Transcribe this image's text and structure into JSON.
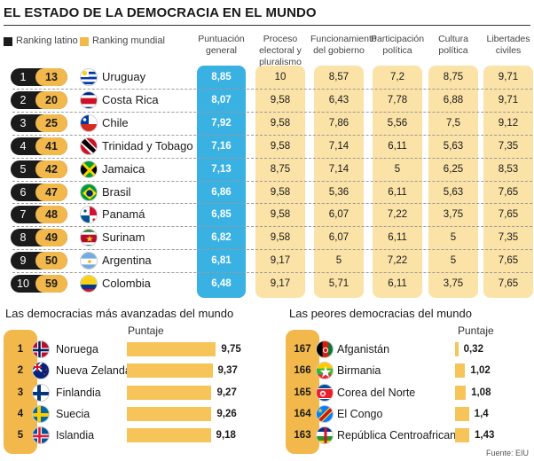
{
  "title": "EL ESTADO DE LA DEMOCRACIA EN EL MUNDO",
  "legend": {
    "latino": "Ranking latino",
    "mundial": "Ranking mundial"
  },
  "colors": {
    "black": "#1b1b1b",
    "gold": "#f2b84b",
    "light": "#fbe3a8",
    "blue": "#39b1e3",
    "bar": "#f6c458"
  },
  "chart_data": [
    {
      "type": "table",
      "columns": [
        "Puntuación general",
        "Proceso electoral y pluralismo",
        "Funcionamiento del gobierno",
        "Participación política",
        "Cultura política",
        "Libertades civiles"
      ],
      "rows": [
        {
          "latino": "1",
          "mundial": "13",
          "country": "Uruguay",
          "flag": "flag-uruguay",
          "values": [
            "8,85",
            "10",
            "8,57",
            "7,2",
            "8,75",
            "9,71"
          ]
        },
        {
          "latino": "2",
          "mundial": "20",
          "country": "Costa Rica",
          "flag": "flag-costa-rica",
          "values": [
            "8,07",
            "9,58",
            "6,43",
            "7,78",
            "6,88",
            "9,71"
          ]
        },
        {
          "latino": "3",
          "mundial": "25",
          "country": "Chile",
          "flag": "flag-chile",
          "values": [
            "7,92",
            "9,58",
            "7,86",
            "5,56",
            "7,5",
            "9,12"
          ]
        },
        {
          "latino": "4",
          "mundial": "41",
          "country": "Trinidad y Tobago",
          "flag": "flag-trinidad",
          "values": [
            "7,16",
            "9,58",
            "7,14",
            "6,11",
            "5,63",
            "7,35"
          ]
        },
        {
          "latino": "5",
          "mundial": "42",
          "country": "Jamaica",
          "flag": "flag-jamaica",
          "values": [
            "7,13",
            "8,75",
            "7,14",
            "5",
            "6,25",
            "8,53"
          ]
        },
        {
          "latino": "6",
          "mundial": "47",
          "country": "Brasil",
          "flag": "flag-brasil",
          "values": [
            "6,86",
            "9,58",
            "5,36",
            "6,11",
            "5,63",
            "7,65"
          ]
        },
        {
          "latino": "7",
          "mundial": "48",
          "country": "Panamá",
          "flag": "flag-panama",
          "values": [
            "6,85",
            "9,58",
            "6,07",
            "7,22",
            "3,75",
            "7,65"
          ]
        },
        {
          "latino": "8",
          "mundial": "49",
          "country": "Surinam",
          "flag": "flag-surinam",
          "values": [
            "6,82",
            "9,58",
            "6,07",
            "6,11",
            "5",
            "7,35"
          ]
        },
        {
          "latino": "9",
          "mundial": "50",
          "country": "Argentina",
          "flag": "flag-argentina",
          "values": [
            "6,81",
            "9,17",
            "5",
            "7,22",
            "5",
            "7,65"
          ]
        },
        {
          "latino": "10",
          "mundial": "59",
          "country": "Colombia",
          "flag": "flag-colombia",
          "values": [
            "6,48",
            "9,17",
            "5,71",
            "6,11",
            "3,75",
            "7,65"
          ]
        }
      ]
    },
    {
      "type": "bar",
      "title": "Las democracias más avanzadas del mundo",
      "ylabel": "Puntaje",
      "ylim": [
        0,
        10
      ],
      "ranks": [
        "1",
        "2",
        "3",
        "4",
        "5"
      ],
      "categories": [
        "Noruega",
        "Nueva Zelanda",
        "Finlandia",
        "Suecia",
        "Islandia"
      ],
      "flags": [
        "flag-noruega",
        "flag-nueva-zelanda",
        "flag-finlandia",
        "flag-suecia",
        "flag-islandia"
      ],
      "values": [
        9.75,
        9.37,
        9.27,
        9.26,
        9.18
      ],
      "labels": [
        "9,75",
        "9,37",
        "9,27",
        "9,26",
        "9,18"
      ]
    },
    {
      "type": "bar",
      "title": "Las peores democracias del mundo",
      "ylabel": "Puntaje",
      "ylim": [
        0,
        10
      ],
      "ranks": [
        "167",
        "166",
        "165",
        "164",
        "163"
      ],
      "categories": [
        "Afganistán",
        "Birmania",
        "Corea del Norte",
        "El Congo",
        "República Centroafricana"
      ],
      "flags": [
        "flag-afganistan",
        "flag-birmania",
        "flag-corea-norte",
        "flag-congo",
        "flag-rca"
      ],
      "values": [
        0.32,
        1.02,
        1.08,
        1.4,
        1.43
      ],
      "labels": [
        "0,32",
        "1,02",
        "1,08",
        "1,4",
        "1,43"
      ]
    }
  ],
  "source": "Fuente: EIU"
}
